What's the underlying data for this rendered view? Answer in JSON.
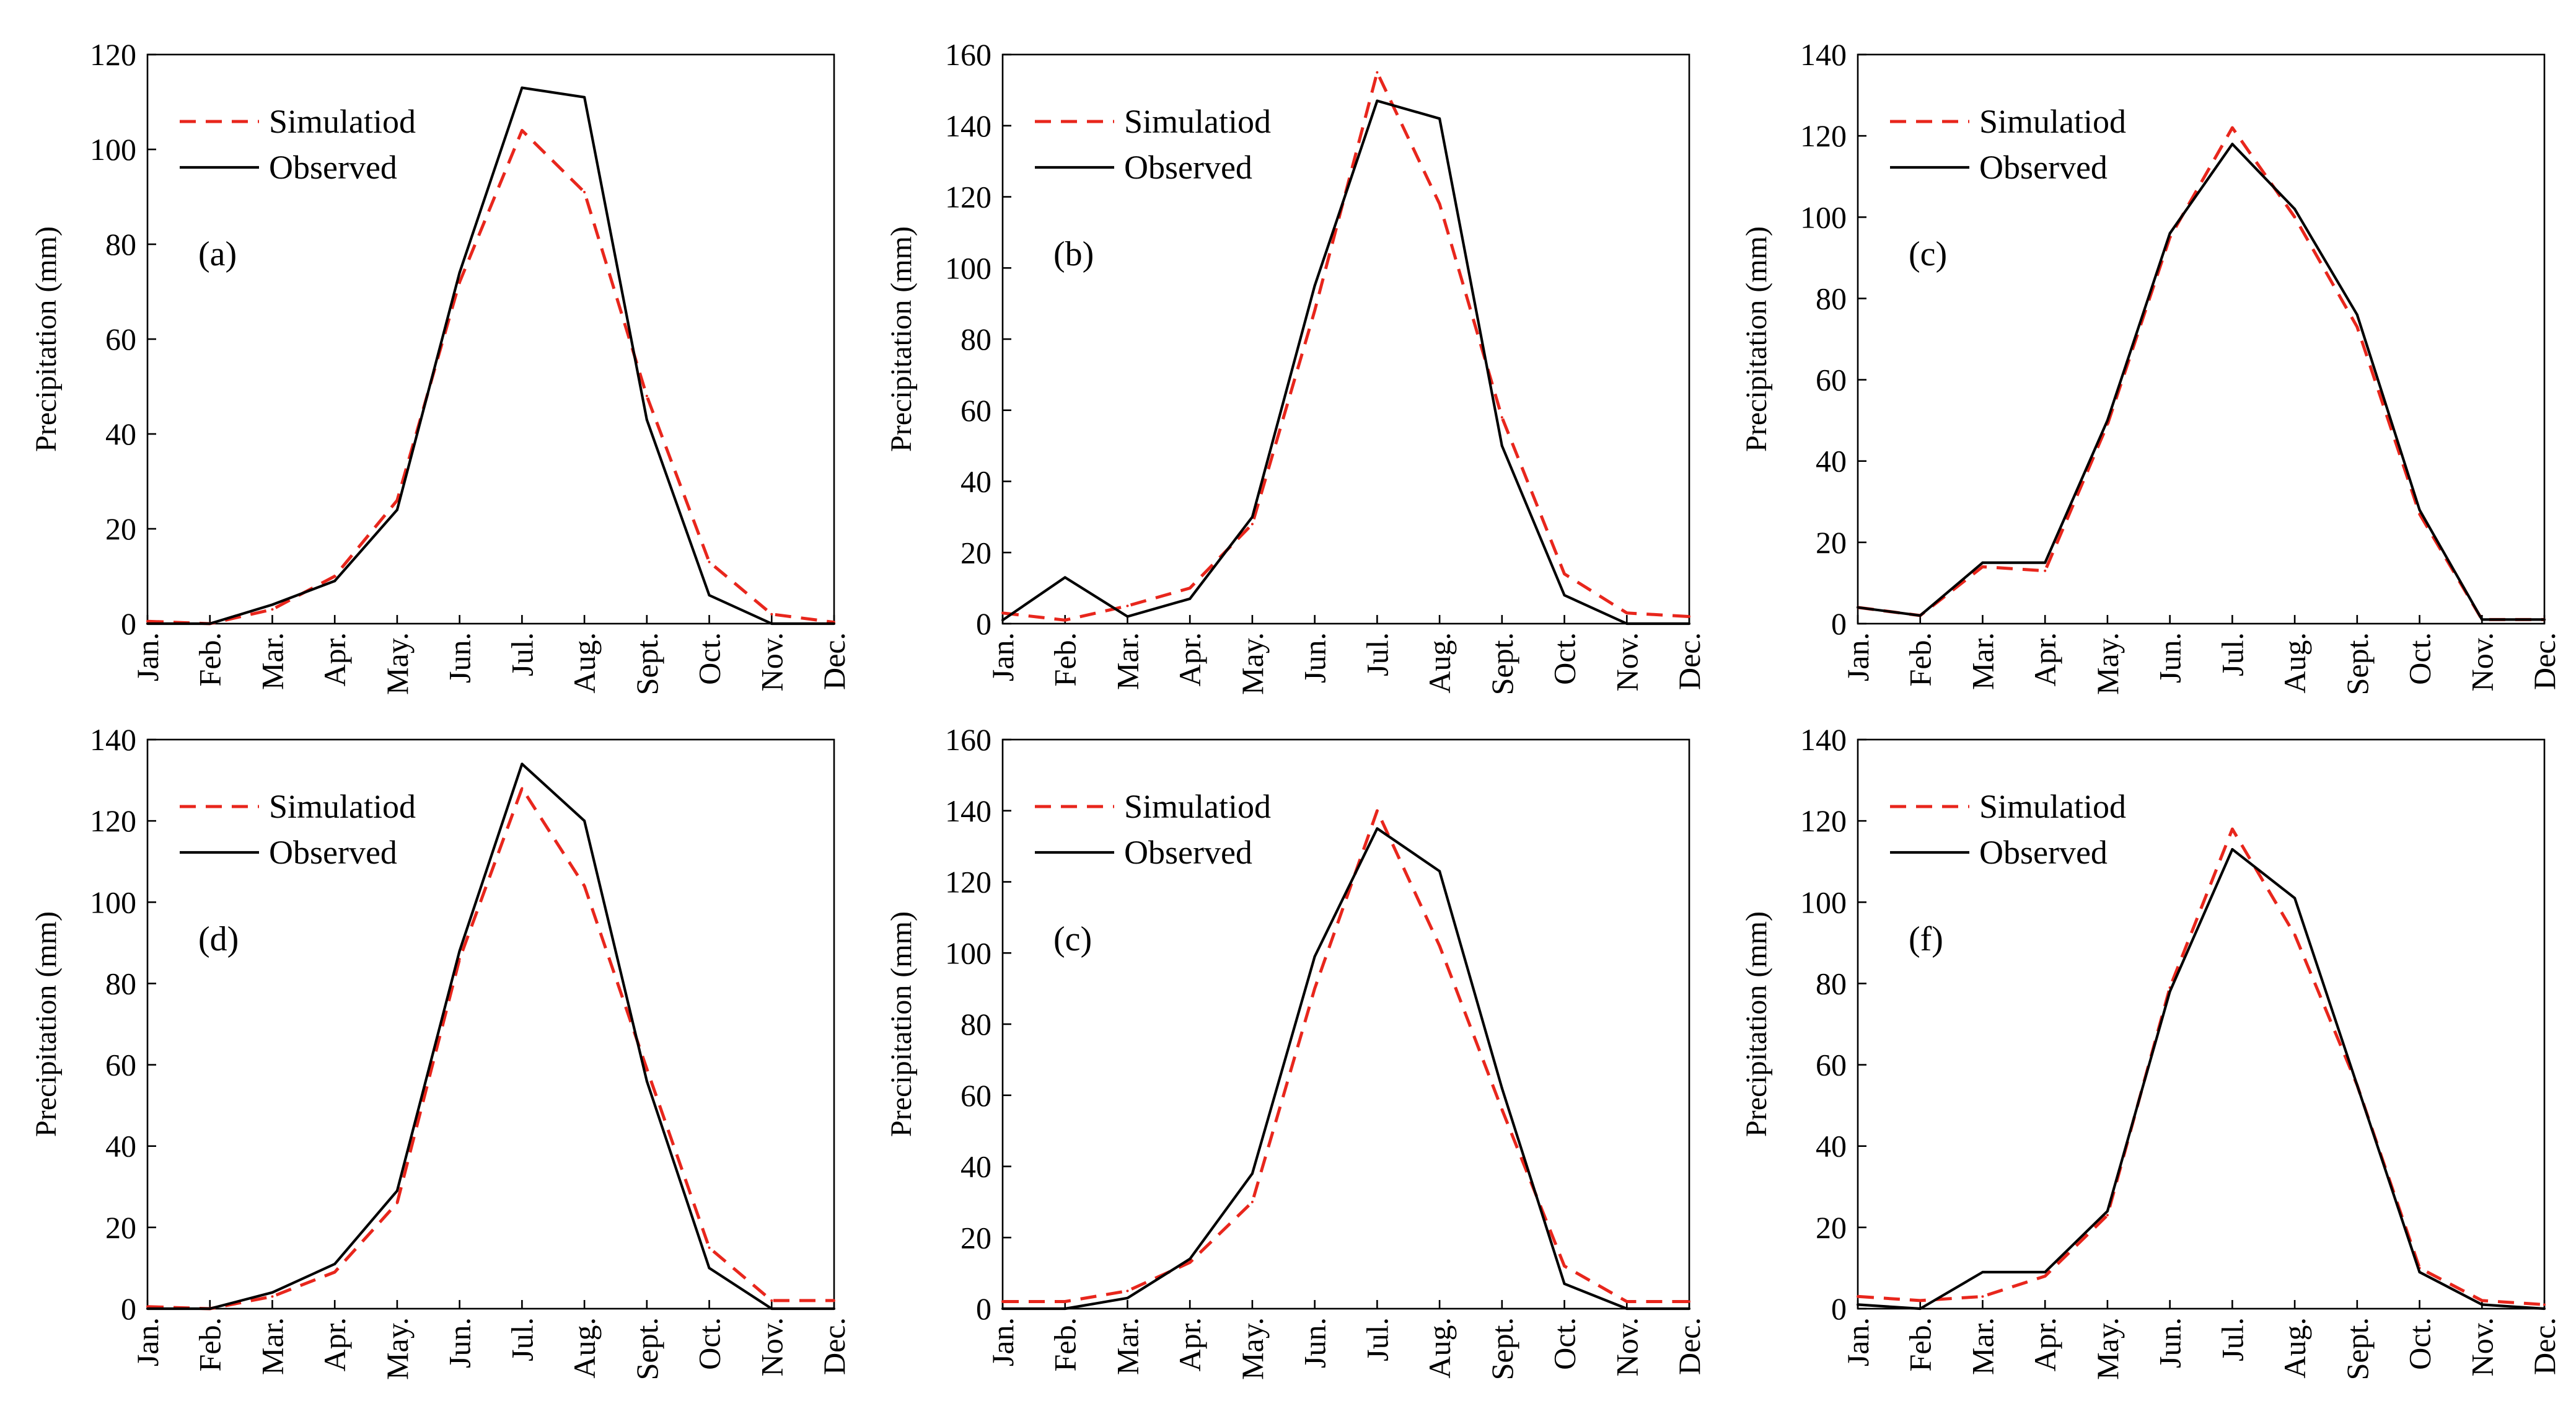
{
  "chart_data": [
    {
      "type": "line",
      "panel_label": "(a)",
      "ylabel": "Precipitation (mm)",
      "ylim": [
        0,
        120
      ],
      "ytick_values": [
        0,
        20,
        40,
        60,
        80,
        100,
        120
      ],
      "categories": [
        "Jan.",
        "Feb.",
        "Mar.",
        "Apr.",
        "May.",
        "Jun.",
        "Jul.",
        "Aug.",
        "Sept.",
        "Oct.",
        "Nov.",
        "Dec."
      ],
      "series": [
        {
          "name": "Simulatiod",
          "color": "#e8261c",
          "dash": "dashed",
          "values": [
            0.5,
            0,
            3,
            10,
            26,
            72,
            104,
            91,
            48,
            13,
            2,
            0.3
          ]
        },
        {
          "name": "Observed",
          "color": "#000000",
          "dash": "solid",
          "values": [
            0,
            0,
            4,
            9,
            24,
            74,
            113,
            111,
            43,
            6,
            0,
            0
          ]
        }
      ]
    },
    {
      "type": "line",
      "panel_label": "(b)",
      "ylabel": "Precipitation (mm)",
      "ylim": [
        0,
        160
      ],
      "ytick_values": [
        0,
        20,
        40,
        60,
        80,
        100,
        120,
        140,
        160
      ],
      "categories": [
        "Jan.",
        "Feb.",
        "Mar.",
        "Apr.",
        "May.",
        "Jun.",
        "Jul.",
        "Aug.",
        "Sept.",
        "Oct.",
        "Nov.",
        "Dec."
      ],
      "series": [
        {
          "name": "Simulatiod",
          "color": "#e8261c",
          "dash": "dashed",
          "values": [
            3,
            1,
            5,
            10,
            28,
            88,
            155,
            118,
            58,
            14,
            3,
            2
          ]
        },
        {
          "name": "Observed",
          "color": "#000000",
          "dash": "solid",
          "values": [
            1,
            13,
            2,
            7,
            30,
            95,
            147,
            142,
            50,
            8,
            0,
            0
          ]
        }
      ]
    },
    {
      "type": "line",
      "panel_label": "(c)",
      "ylabel": "Precipitation (mm)",
      "ylim": [
        0,
        140
      ],
      "ytick_values": [
        0,
        20,
        40,
        60,
        80,
        100,
        120,
        140
      ],
      "categories": [
        "Jan.",
        "Feb.",
        "Mar.",
        "Apr.",
        "May.",
        "Jun.",
        "Jul.",
        "Aug.",
        "Sept.",
        "Oct.",
        "Nov.",
        "Dec."
      ],
      "series": [
        {
          "name": "Simulatiod",
          "color": "#e8261c",
          "dash": "dashed",
          "values": [
            4,
            2,
            14,
            13,
            49,
            95,
            122,
            100,
            73,
            27,
            1,
            1
          ]
        },
        {
          "name": "Observed",
          "color": "#000000",
          "dash": "solid",
          "values": [
            4,
            2,
            15,
            15,
            50,
            96,
            118,
            102,
            76,
            28,
            1,
            1
          ]
        }
      ]
    },
    {
      "type": "line",
      "panel_label": "(d)",
      "ylabel": "Precipitation (mm)",
      "ylim": [
        0,
        140
      ],
      "ytick_values": [
        0,
        20,
        40,
        60,
        80,
        100,
        120,
        140
      ],
      "categories": [
        "Jan.",
        "Feb.",
        "Mar.",
        "Apr.",
        "May.",
        "Jun.",
        "Jul.",
        "Aug.",
        "Sept.",
        "Oct.",
        "Nov.",
        "Dec."
      ],
      "series": [
        {
          "name": "Simulatiod",
          "color": "#e8261c",
          "dash": "dashed",
          "values": [
            0.5,
            0,
            3,
            9,
            26,
            86,
            128,
            104,
            59,
            15,
            2,
            2
          ]
        },
        {
          "name": "Observed",
          "color": "#000000",
          "dash": "solid",
          "values": [
            0,
            0,
            4,
            11,
            29,
            88,
            134,
            120,
            56,
            10,
            0,
            0
          ]
        }
      ]
    },
    {
      "type": "line",
      "panel_label": "(c)",
      "ylabel": "Precipitation (mm)",
      "ylim": [
        0,
        160
      ],
      "ytick_values": [
        0,
        20,
        40,
        60,
        80,
        100,
        120,
        140,
        160
      ],
      "categories": [
        "Jan.",
        "Feb.",
        "Mar.",
        "Apr.",
        "May.",
        "Jun.",
        "Jul.",
        "Aug.",
        "Sept.",
        "Oct.",
        "Nov.",
        "Dec."
      ],
      "series": [
        {
          "name": "Simulatiod",
          "color": "#e8261c",
          "dash": "dashed",
          "values": [
            2,
            2,
            5,
            13,
            30,
            90,
            140,
            102,
            56,
            12,
            2,
            2
          ]
        },
        {
          "name": "Observed",
          "color": "#000000",
          "dash": "solid",
          "values": [
            0,
            0,
            3,
            14,
            38,
            99,
            135,
            123,
            62,
            7,
            0,
            0
          ]
        }
      ]
    },
    {
      "type": "line",
      "panel_label": "(f)",
      "ylabel": "Precipitation (mm)",
      "ylim": [
        0,
        140
      ],
      "ytick_values": [
        0,
        20,
        40,
        60,
        80,
        100,
        120,
        140
      ],
      "categories": [
        "Jan.",
        "Feb.",
        "Mar.",
        "Apr.",
        "May.",
        "Jun.",
        "Jul.",
        "Aug.",
        "Sept.",
        "Oct.",
        "Nov.",
        "Dec."
      ],
      "series": [
        {
          "name": "Simulatiod",
          "color": "#e8261c",
          "dash": "dashed",
          "values": [
            3,
            2,
            3,
            8,
            23,
            79,
            118,
            92,
            55,
            10,
            2,
            1
          ]
        },
        {
          "name": "Observed",
          "color": "#000000",
          "dash": "solid",
          "values": [
            1,
            0,
            9,
            9,
            24,
            78,
            113,
            101,
            55,
            9,
            1,
            0
          ]
        }
      ]
    }
  ]
}
